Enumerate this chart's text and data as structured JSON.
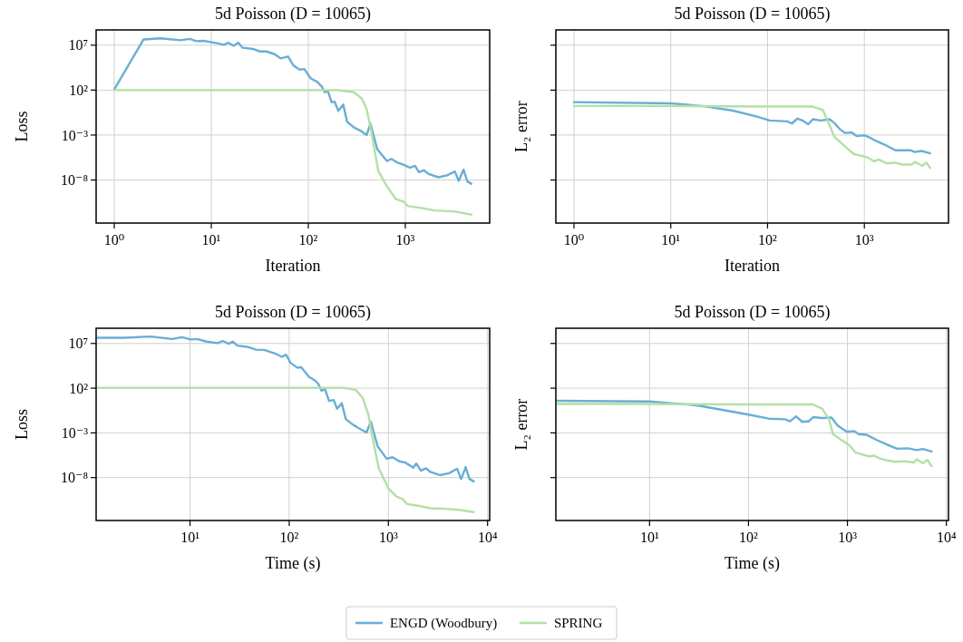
{
  "chart_data": [
    {
      "type": "line",
      "title": "5d Poisson (D = 10065)",
      "xlabel": "Iteration",
      "ylabel": "Loss",
      "log": "xy",
      "grid": true,
      "legend": "bottom",
      "xlim": [
        0.65,
        7400
      ],
      "ylim": [
        1.6e-13,
        500000000.0
      ],
      "xticks": [
        {
          "value": 1,
          "label": "10⁰"
        },
        {
          "value": 10,
          "label": "10¹"
        },
        {
          "value": 100,
          "label": "10²"
        },
        {
          "value": 1000,
          "label": "10³"
        }
      ],
      "yticks": [
        {
          "value": 10000000.0,
          "label": "10⁷"
        },
        {
          "value": 100,
          "label": "10²"
        },
        {
          "value": 0.001,
          "label": "10⁻³"
        },
        {
          "value": 1e-08,
          "label": "10⁻⁸"
        }
      ],
      "series": [
        {
          "name": "ENGD (Woodbury)",
          "color": "#6aaed6",
          "x": [
            1,
            2,
            3,
            4.8,
            6,
            7,
            8.3,
            11.7,
            13.5,
            15,
            17,
            19,
            21,
            27,
            32,
            37,
            45,
            52,
            62,
            70,
            81,
            91,
            106,
            123,
            138,
            148,
            159,
            174,
            187,
            204,
            229,
            251,
            296,
            345,
            400,
            436,
            515,
            645,
            720,
            835,
            980,
            1120,
            1260,
            1380,
            1550,
            1740,
            2190,
            2690,
            3240,
            3550,
            3980,
            4360,
            4790
          ],
          "values": [
            120.0,
            43000000.0,
            59000000.0,
            36000000.0,
            50000000.0,
            28000000.0,
            31000000.0,
            16000000.0,
            11000000.0,
            19000000.0,
            8500000.0,
            19000000.0,
            5200000.0,
            3800000.0,
            2000000.0,
            2000000.0,
            1000000.0,
            340000.0,
            550000.0,
            58000.0,
            19000.0,
            22000.0,
            2000.0,
            870.0,
            240.0,
            58,
            79,
            4.4,
            5.1,
            0.49,
            2.5,
            0.03,
            0.0069,
            0.0031,
            0.001,
            0.019,
            2.5e-05,
            1.3e-06,
            2.2e-06,
            8.3e-07,
            4.4e-07,
            2.3e-07,
            3.7e-07,
            7.4e-08,
            1.2e-07,
            4.6e-08,
            2e-08,
            3.3e-08,
            8.7e-08,
            7.9e-09,
            1.4e-07,
            6.8e-09,
            3.8e-09
          ]
        },
        {
          "name": "SPRING",
          "color": "#b3e0a6",
          "x": [
            1,
            2,
            5,
            10,
            30,
            100,
            200,
            296,
            355,
            400,
            446,
            525,
            645,
            795,
            980,
            1050,
            1510,
            2000,
            3160,
            4790
          ],
          "values": [
            100.0,
            100.0,
            100.0,
            100.0,
            100.0,
            100.0,
            100.0,
            58,
            12,
            0.74,
            0.0026,
            1.1e-07,
            2e-09,
            7.9e-11,
            3.5e-11,
            1.3e-11,
            7.1e-12,
            4e-12,
            3.2e-12,
            1.4e-12
          ]
        }
      ]
    },
    {
      "type": "line",
      "title": "5d Poisson (D = 10065)",
      "xlabel": "Iteration",
      "ylabel": "L₂ error",
      "log": "xy",
      "grid": true,
      "tick_labels": "x",
      "xlim": [
        0.65,
        7400
      ],
      "ylim": [
        1.6e-13,
        500000000.0
      ],
      "xticks": [
        {
          "value": 1,
          "label": "10⁰"
        },
        {
          "value": 10,
          "label": "10¹"
        },
        {
          "value": 100,
          "label": "10²"
        },
        {
          "value": 1000,
          "label": "10³"
        }
      ],
      "yticks": [
        {
          "value": 10000000.0,
          "label": null
        },
        {
          "value": 100,
          "label": null
        },
        {
          "value": 0.001,
          "label": null
        },
        {
          "value": 1e-08,
          "label": null
        }
      ],
      "series": [
        {
          "color": "#6aaed6",
          "x": [
            1,
            10,
            21,
            44,
            78,
            105,
            160,
            178,
            204,
            229,
            263,
            295,
            355,
            436,
            490,
            550,
            631,
            741,
            832,
            1000,
            1120,
            1320,
            1620,
            2090,
            2510,
            3020,
            3310,
            3890,
            4790
          ],
          "values": [
            4.6,
            3.3,
            1.7,
            0.52,
            0.11,
            0.042,
            0.033,
            0.019,
            0.068,
            0.042,
            0.016,
            0.058,
            0.042,
            0.058,
            0.022,
            0.0052,
            0.0017,
            0.002,
            0.00079,
            0.00093,
            0.00058,
            0.00022,
            8.5e-05,
            2e-05,
            2e-05,
            2e-05,
            1.3e-05,
            1.7e-05,
            9.3e-06
          ]
        },
        {
          "color": "#b3e0a6",
          "x": [
            1,
            10,
            100,
            288,
            372,
            427,
            490,
            603,
            776,
            912,
            1100,
            1260,
            1410,
            1700,
            2040,
            2510,
            3090,
            3310,
            3980,
            4370,
            4790
          ],
          "values": [
            1.7,
            1.7,
            1.5,
            1.5,
            0.62,
            0.022,
            0.00063,
            8.5e-05,
            7.9e-06,
            5.2e-06,
            3e-06,
            1.2e-06,
            1.9e-06,
            7.2e-07,
            8.5e-07,
            5.2e-07,
            5.2e-07,
            1e-06,
            3.9e-07,
            8.5e-07,
            2.2e-07
          ]
        }
      ]
    },
    {
      "type": "line",
      "title": "5d Poisson (D = 10065)",
      "xlabel": "Time (s)",
      "ylabel": "Loss",
      "log": "xy",
      "grid": true,
      "xlim": [
        1.13,
        10500
      ],
      "ylim": [
        1.6e-13,
        500000000.0
      ],
      "xticks": [
        {
          "value": 10,
          "label": "10¹"
        },
        {
          "value": 100,
          "label": "10²"
        },
        {
          "value": 1000,
          "label": "10³"
        },
        {
          "value": 10000,
          "label": "10⁴"
        }
      ],
      "yticks": [
        {
          "value": 10000000.0,
          "label": "10⁷"
        },
        {
          "value": 100,
          "label": "10²"
        },
        {
          "value": 0.001,
          "label": "10⁻³"
        },
        {
          "value": 1e-08,
          "label": "10⁻⁸"
        }
      ],
      "series": [
        {
          "color": "#6aaed6",
          "x": [
            1.17,
            2.2,
            4,
            6.6,
            8.3,
            10.2,
            11.8,
            14.7,
            19,
            21.4,
            24.5,
            27,
            30,
            37.5,
            46.5,
            56,
            72,
            84,
            93,
            103,
            120,
            132,
            159,
            183,
            196,
            212,
            230,
            252,
            281,
            304,
            339,
            372,
            437,
            503,
            603,
            664,
            779,
            960,
            1100,
            1290,
            1480,
            1780,
            1910,
            2130,
            2390,
            2650,
            3300,
            4090,
            4930,
            5420,
            6010,
            6560,
            7240
          ],
          "values": [
            43000000.0,
            43000000.0,
            59000000.0,
            31000000.0,
            50000000.0,
            28000000.0,
            31000000.0,
            16000000.0,
            11000000.0,
            19000000.0,
            9300000.0,
            16000000.0,
            5800000.0,
            4200000.0,
            2000000.0,
            1900000.0,
            760000.0,
            320000.0,
            550000.0,
            68000.0,
            20000.0,
            22000.0,
            1800.0,
            690.0,
            310.0,
            52,
            72,
            3.7,
            4.7,
            0.49,
            2.1,
            0.035,
            0.0087,
            0.0033,
            0.0011,
            0.019,
            3.2e-05,
            1.3e-06,
            1.9e-06,
            6.6e-07,
            4.8e-07,
            1.3e-07,
            3.7e-07,
            5.9e-08,
            1.1e-07,
            4.3e-08,
            1.9e-08,
            3.1e-08,
            9.5e-08,
            6.8e-09,
            1.5e-07,
            7.2e-09,
            3.8e-09
          ]
        },
        {
          "color": "#b3e0a6",
          "x": [
            1.17,
            10,
            100,
            355,
            470,
            550,
            630,
            680,
            800,
            1000,
            1200,
            1390,
            1540,
            2000,
            2650,
            3800,
            5130,
            7240
          ],
          "values": [
            110.0,
            110.0,
            110.0,
            110.0,
            62,
            8.3,
            0.1,
            0.00079,
            1.1e-07,
            6.3e-10,
            7.9e-11,
            4e-11,
            1.1e-11,
            7.1e-12,
            3.7e-12,
            3.2e-12,
            2.5e-12,
            1.4e-12
          ]
        }
      ]
    },
    {
      "type": "line",
      "title": "5d Poisson (D = 10065)",
      "xlabel": "Time (s)",
      "ylabel": "L₂ error",
      "log": "xy",
      "grid": true,
      "tick_labels": "x",
      "xlim": [
        1.13,
        10500
      ],
      "ylim": [
        1.6e-13,
        500000000.0
      ],
      "xticks": [
        {
          "value": 10,
          "label": "10¹"
        },
        {
          "value": 100,
          "label": "10²"
        },
        {
          "value": 1000,
          "label": "10³"
        },
        {
          "value": 10000,
          "label": "10⁴"
        }
      ],
      "yticks": [
        {
          "value": 10000000.0,
          "label": null
        },
        {
          "value": 100,
          "label": null
        },
        {
          "value": 0.001,
          "label": null
        },
        {
          "value": 1e-08,
          "label": null
        }
      ],
      "series": [
        {
          "color": "#6aaed6",
          "x": [
            1.17,
            10,
            30,
            61,
            100,
            160,
            235,
            263,
            302,
            350,
            407,
            450,
            555,
            690,
            795,
            980,
            1170,
            1300,
            1550,
            2000,
            2650,
            3170,
            4080,
            5030,
            5780,
            7100
          ],
          "values": [
            3.9,
            3.3,
            1.2,
            0.3,
            0.11,
            0.039,
            0.033,
            0.02,
            0.072,
            0.017,
            0.02,
            0.058,
            0.046,
            0.052,
            0.0068,
            0.0014,
            0.0016,
            0.00072,
            0.00062,
            0.00015,
            3.9e-05,
            1.7e-05,
            1.9e-05,
            1.2e-05,
            1.6e-05,
            8.5e-06
          ]
        },
        {
          "color": "#b3e0a6",
          "x": [
            1.17,
            10,
            100,
            450,
            555,
            650,
            715,
            850,
            1050,
            1210,
            1450,
            1670,
            1870,
            2150,
            2590,
            3050,
            3790,
            4670,
            5030,
            5780,
            6430,
            7100
          ],
          "values": [
            1.7,
            1.7,
            1.5,
            1.5,
            0.52,
            0.033,
            0.00072,
            0.00019,
            3.9e-05,
            6.2e-06,
            3.5e-06,
            2.4e-06,
            2.8e-06,
            1.3e-06,
            7.9e-07,
            5.8e-07,
            6.8e-07,
            4.9e-07,
            1.1e-06,
            4.2e-07,
            9.3e-07,
            1.9e-07
          ]
        }
      ]
    }
  ]
}
